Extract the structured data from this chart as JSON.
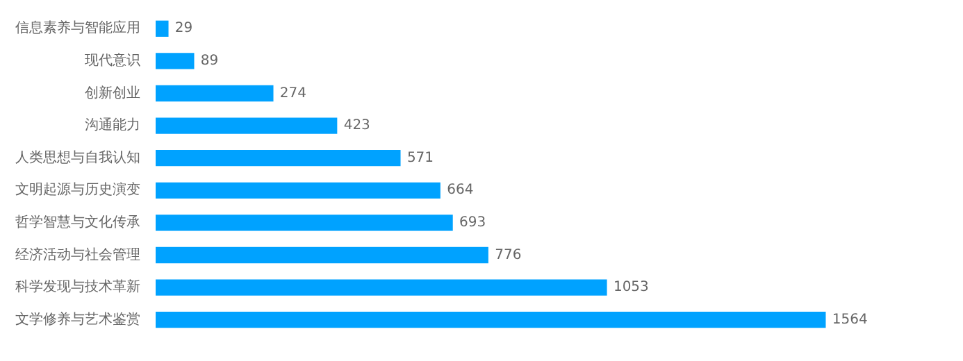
{
  "chart_data": {
    "type": "bar",
    "orientation": "horizontal",
    "categories": [
      "信息素养与智能应用",
      "现代意识",
      "创新创业",
      "沟通能力",
      "人类思想与自我认知",
      "文明起源与历史演变",
      "哲学智慧与文化传承",
      "经济活动与社会管理",
      "科学发现与技术革新",
      "文学修养与艺术鉴赏"
    ],
    "values": [
      29,
      89,
      274,
      423,
      571,
      664,
      693,
      776,
      1053,
      1564
    ],
    "color": "#00a2ff",
    "data_labels": true,
    "legend": false,
    "tick_labels": "y"
  }
}
